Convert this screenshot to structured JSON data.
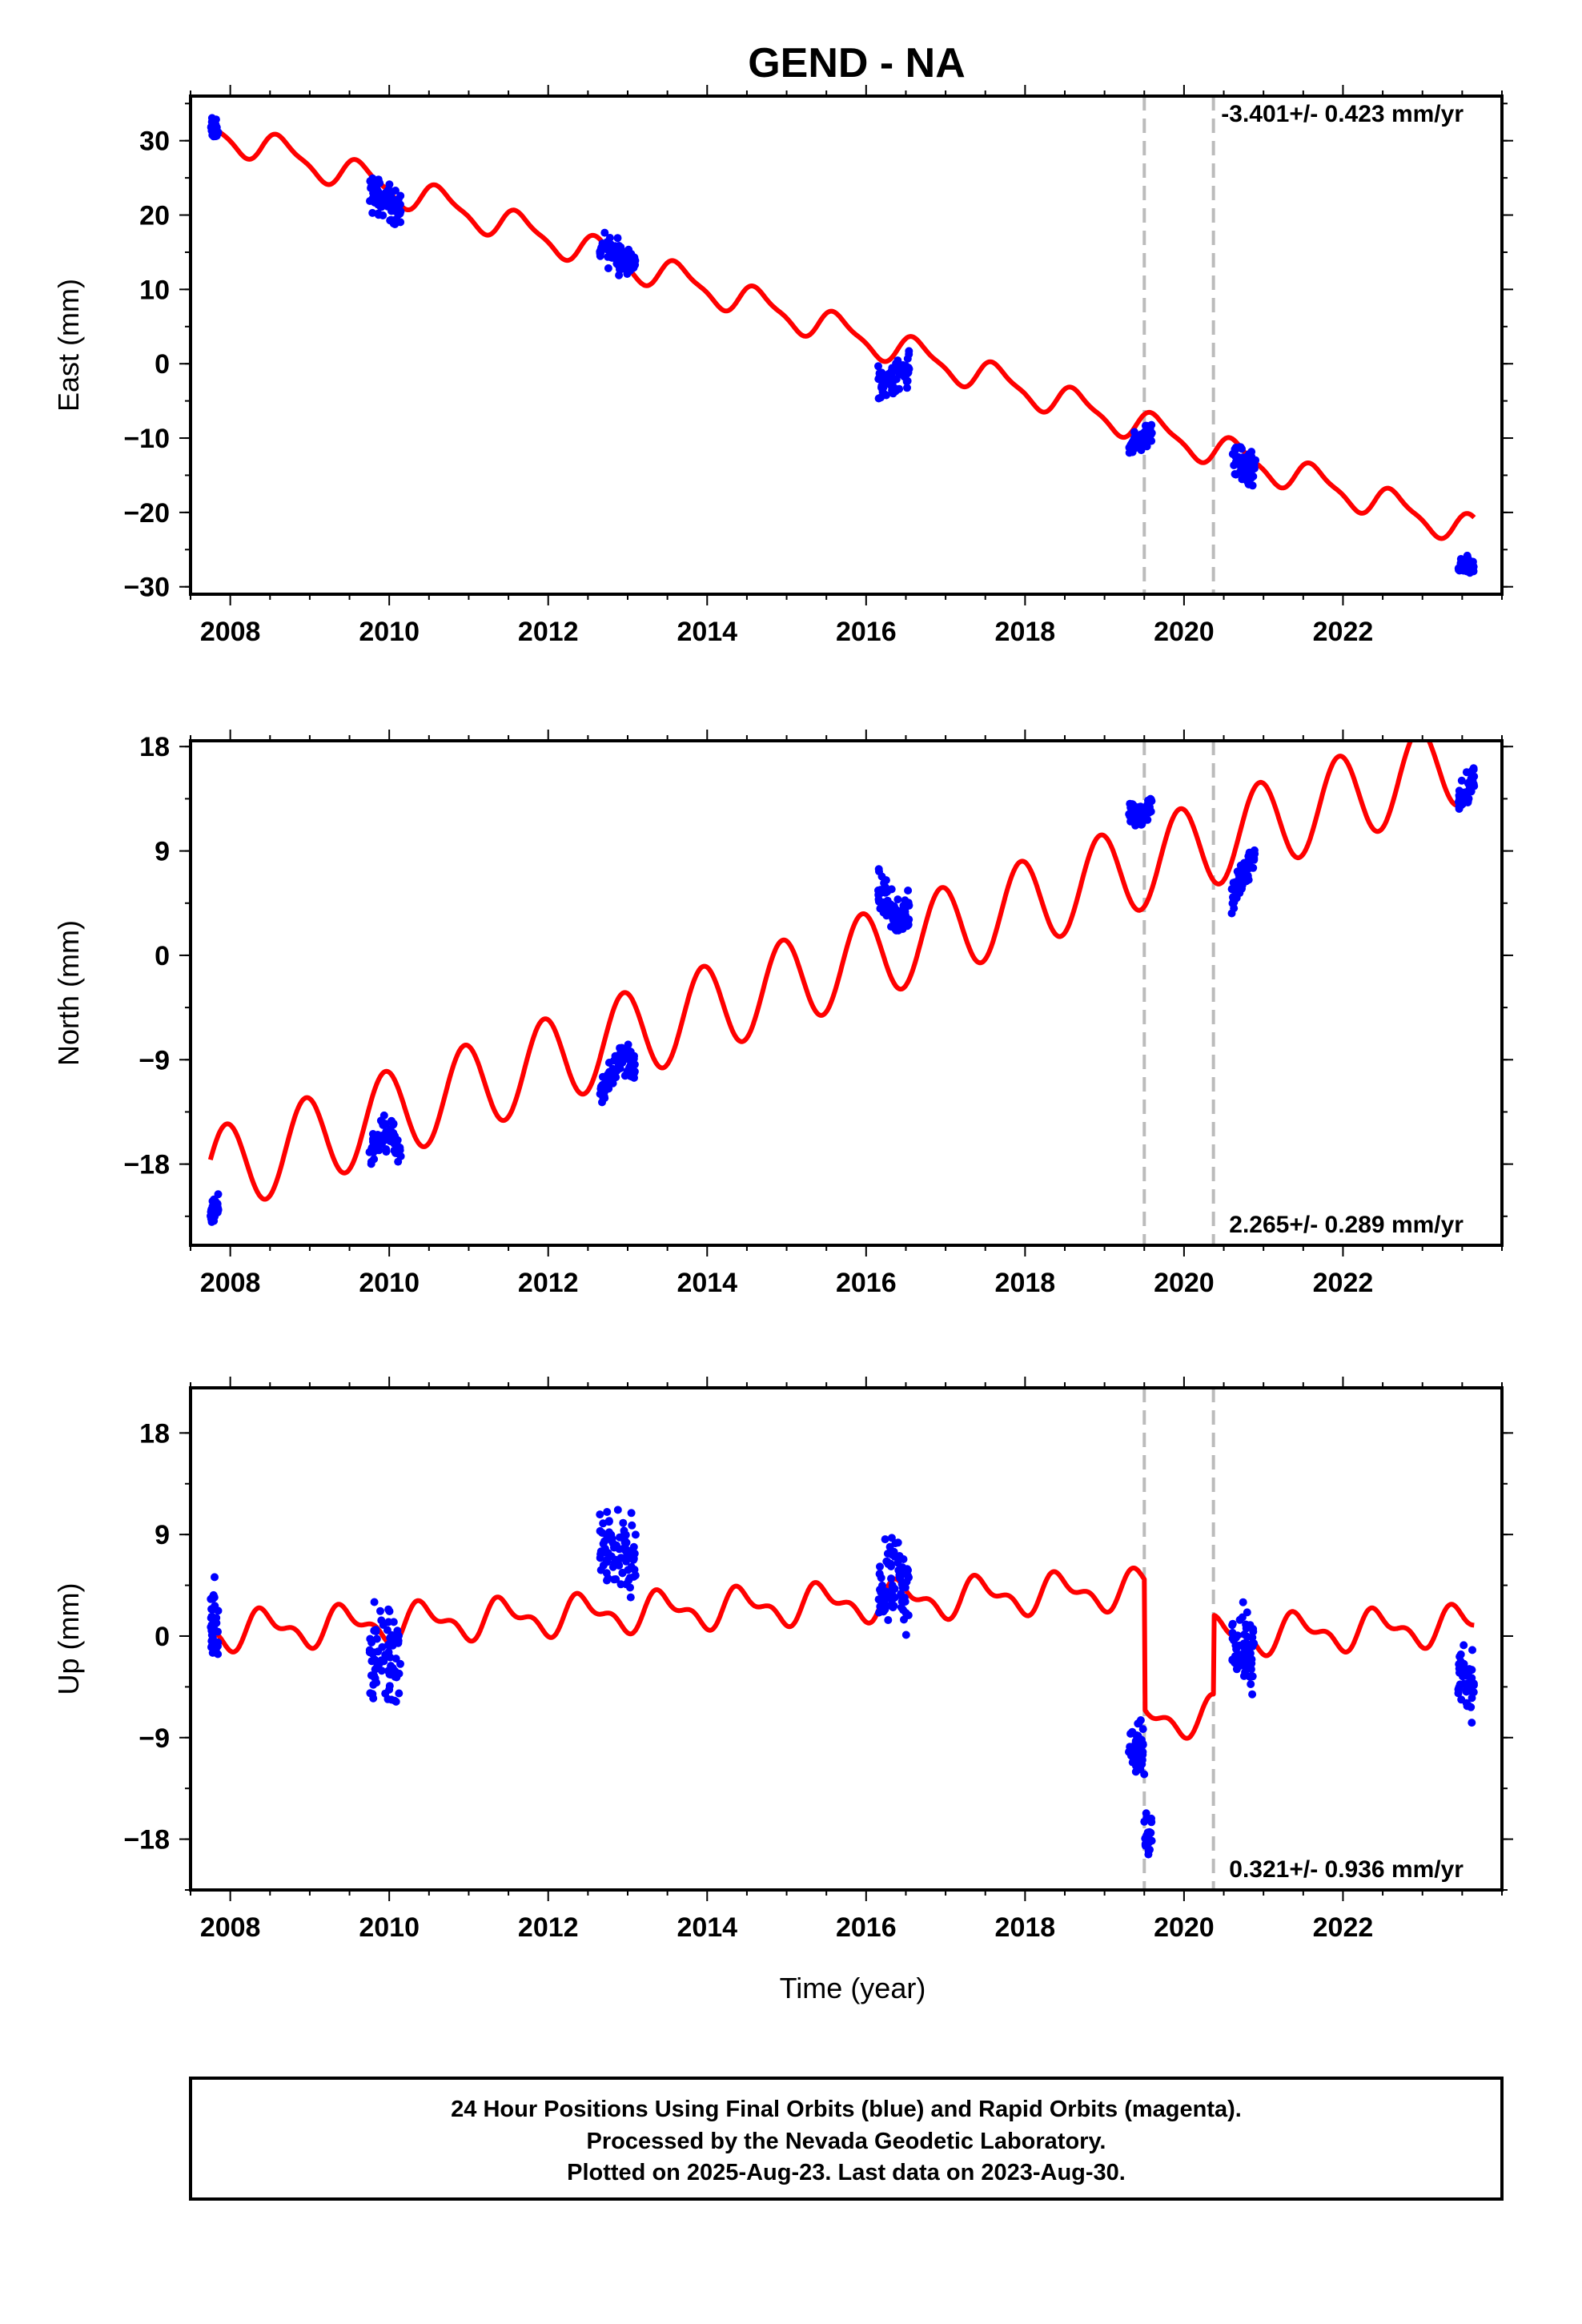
{
  "title": "GEND - NA",
  "x_axis_label": "Time (year)",
  "footer": {
    "line1": "24 Hour Positions Using Final Orbits (blue) and Rapid Orbits (magenta).",
    "line2": "Processed by the Nevada Geodetic Laboratory.",
    "line3": "Plotted on 2025-Aug-23. Last data on 2023-Aug-30."
  },
  "colors": {
    "points": "#0000ff",
    "model": "#ff0000",
    "breaks": "#bbbbbb",
    "frame": "#000000"
  },
  "chart_data": [
    {
      "type": "scatter",
      "ylabel": "East (mm)",
      "rate_label": "-3.401+/- 0.423 mm/yr",
      "rate_position": "top-right",
      "xlim": [
        2007.5,
        2024.0
      ],
      "ylim": [
        -31,
        36
      ],
      "xticks": [
        2008,
        2010,
        2012,
        2014,
        2016,
        2018,
        2020,
        2022
      ],
      "yticks": [
        -30,
        -20,
        -10,
        0,
        10,
        20,
        30
      ],
      "model_line": {
        "offset": 31.4,
        "rate": -3.401,
        "annual_amp": 2.0,
        "semiannual_amp": 0.6,
        "phase": 0.6,
        "steps": []
      },
      "clusters": [
        {
          "start": 2007.75,
          "end": 2007.85,
          "base": 31.5,
          "spread": 2.0
        },
        {
          "start": 2009.75,
          "end": 2010.15,
          "base": 22.0,
          "spread": 3.5
        },
        {
          "start": 2012.65,
          "end": 2013.1,
          "base": 14.5,
          "spread": 3.0
        },
        {
          "start": 2016.15,
          "end": 2016.55,
          "base": -2.0,
          "spread": 3.5
        },
        {
          "start": 2019.3,
          "end": 2019.6,
          "base": -10.0,
          "spread": 2.0
        },
        {
          "start": 2020.6,
          "end": 2020.9,
          "base": -13.5,
          "spread": 3.0
        },
        {
          "start": 2023.45,
          "end": 2023.65,
          "base": -27.0,
          "spread": 1.5
        }
      ],
      "breaks": [
        2019.5,
        2020.37
      ]
    },
    {
      "type": "scatter",
      "ylabel": "North (mm)",
      "rate_label": "2.265+/- 0.289 mm/yr",
      "rate_position": "bottom-right",
      "xlim": [
        2007.5,
        2024.0
      ],
      "ylim": [
        -25,
        18.5
      ],
      "xticks": [
        2008,
        2010,
        2012,
        2014,
        2016,
        2018,
        2020,
        2022
      ],
      "yticks": [
        -18,
        -9,
        0,
        9,
        18
      ],
      "model_line": {
        "offset": -18.8,
        "rate": 2.265,
        "annual_amp": 3.8,
        "semiannual_amp": 0.0,
        "phase": 0.3,
        "steps": []
      },
      "clusters": [
        {
          "start": 2007.75,
          "end": 2007.85,
          "base": -22.0,
          "spread": 1.5
        },
        {
          "start": 2009.75,
          "end": 2010.15,
          "base": -15.5,
          "spread": 2.0
        },
        {
          "start": 2012.65,
          "end": 2013.1,
          "base": -9.5,
          "spread": 2.0
        },
        {
          "start": 2016.15,
          "end": 2016.55,
          "base": 3.5,
          "spread": 3.0
        },
        {
          "start": 2019.3,
          "end": 2019.6,
          "base": 12.0,
          "spread": 1.5
        },
        {
          "start": 2020.6,
          "end": 2020.9,
          "base": 7.0,
          "spread": 2.0
        },
        {
          "start": 2023.45,
          "end": 2023.65,
          "base": 14.0,
          "spread": 2.0
        }
      ],
      "breaks": [
        2019.5,
        2020.37
      ]
    },
    {
      "type": "scatter",
      "ylabel": "Up (mm)",
      "rate_label": "0.321+/- 0.936 mm/yr",
      "rate_position": "bottom-right",
      "xlim": [
        2007.5,
        2024.0
      ],
      "ylim": [
        -22.5,
        22
      ],
      "xticks": [
        2008,
        2010,
        2012,
        2014,
        2016,
        2018,
        2020,
        2022
      ],
      "yticks": [
        -18,
        -9,
        0,
        9,
        18
      ],
      "model_line": {
        "offset": 0.4,
        "rate": 0.321,
        "annual_amp": 1.4,
        "semiannual_amp": 0.8,
        "phase": 0.8,
        "steps": [
          {
            "at": 2019.5,
            "delta": -11.5
          },
          {
            "at": 2020.37,
            "delta": 7.0
          }
        ]
      },
      "clusters": [
        {
          "start": 2007.75,
          "end": 2007.85,
          "base": 1.0,
          "spread": 5.0
        },
        {
          "start": 2009.75,
          "end": 2010.15,
          "base": -2.0,
          "spread": 6.0
        },
        {
          "start": 2012.65,
          "end": 2013.1,
          "base": 8.0,
          "spread": 6.0
        },
        {
          "start": 2016.15,
          "end": 2016.55,
          "base": 5.0,
          "spread": 6.0
        },
        {
          "start": 2019.3,
          "end": 2019.6,
          "base": -10.0,
          "spread": 3.5
        },
        {
          "start": 2020.6,
          "end": 2020.9,
          "base": -1.0,
          "spread": 5.0
        },
        {
          "start": 2023.45,
          "end": 2023.65,
          "base": -4.0,
          "spread": 4.0
        }
      ],
      "breaks": [
        2019.5,
        2020.37
      ]
    }
  ]
}
